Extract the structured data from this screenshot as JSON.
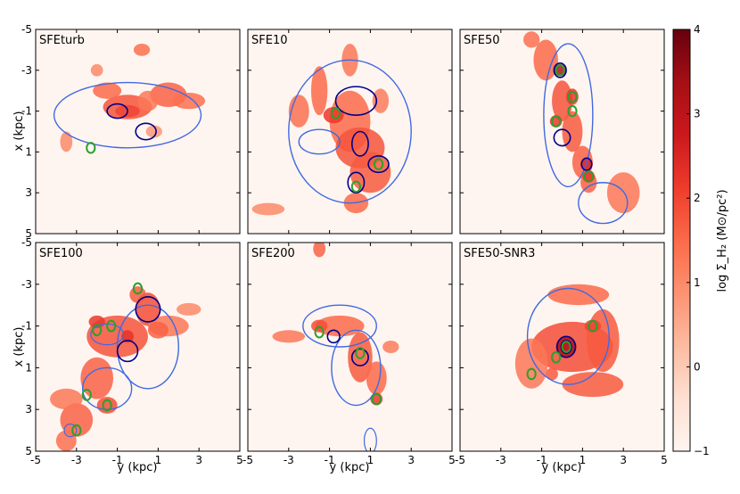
{
  "chart_data": {
    "type": "heatmap",
    "panels": [
      {
        "title": "SFEturb",
        "show_xlabel": false,
        "show_ylabel": true,
        "blobs": [
          [
            -0.5,
            -1.2,
            1.2,
            0.6,
            1.8
          ],
          [
            1.5,
            -1.8,
            0.9,
            0.6,
            1.6
          ],
          [
            2.5,
            -1.5,
            0.8,
            0.4,
            1.4
          ],
          [
            -0.5,
            -1.0,
            0.6,
            0.3,
            2.0
          ],
          [
            -1.5,
            -2.0,
            0.7,
            0.4,
            1.5
          ],
          [
            0.5,
            -1.5,
            0.5,
            0.5,
            1.3
          ],
          [
            -3.5,
            0.5,
            0.3,
            0.5,
            1.0
          ],
          [
            0.2,
            -4.0,
            0.4,
            0.3,
            1.4
          ],
          [
            -2.0,
            -3.0,
            0.3,
            0.3,
            1.0
          ],
          [
            0.8,
            0.0,
            0.4,
            0.3,
            0.8
          ]
        ],
        "contours": [
          [
            -0.5,
            -0.8,
            3.6,
            1.6,
            "#4169e1",
            1.4
          ],
          [
            -1.0,
            -1.0,
            0.5,
            0.35,
            "#00008b",
            1.6
          ],
          [
            0.4,
            0.0,
            0.5,
            0.4,
            "#00008b",
            1.6
          ]
        ],
        "greens": [
          [
            -2.3,
            0.8
          ]
        ]
      },
      {
        "title": "SFE10",
        "show_xlabel": false,
        "show_ylabel": false,
        "blobs": [
          [
            0.0,
            -0.5,
            1.0,
            1.5,
            1.5
          ],
          [
            0.5,
            0.8,
            1.2,
            1.0,
            1.8
          ],
          [
            1.0,
            2.0,
            1.0,
            1.0,
            1.7
          ],
          [
            -1.5,
            -2.0,
            0.4,
            1.2,
            1.5
          ],
          [
            0.0,
            -3.5,
            0.4,
            0.8,
            1.3
          ],
          [
            -2.5,
            -1.0,
            0.5,
            0.8,
            1.4
          ],
          [
            1.5,
            -1.5,
            0.4,
            0.6,
            1.2
          ],
          [
            -4.0,
            3.8,
            0.8,
            0.3,
            1.0
          ],
          [
            0.3,
            3.5,
            0.6,
            0.5,
            1.5
          ],
          [
            -0.8,
            -0.8,
            0.5,
            0.4,
            2.2
          ]
        ],
        "contours": [
          [
            0.0,
            0.0,
            3.0,
            3.5,
            "#4169e1",
            1.4
          ],
          [
            0.3,
            -1.5,
            1.0,
            0.7,
            "#00008b",
            1.6
          ],
          [
            0.5,
            0.6,
            0.4,
            0.6,
            "#00008b",
            1.6
          ],
          [
            1.4,
            1.6,
            0.5,
            0.4,
            "#00008b",
            1.6
          ],
          [
            0.3,
            2.5,
            0.4,
            0.5,
            "#00008b",
            1.6
          ],
          [
            -1.5,
            0.5,
            1.0,
            0.6,
            "#4169e1",
            1.4
          ]
        ],
        "greens": [
          [
            -0.7,
            -0.9
          ],
          [
            1.4,
            1.6
          ],
          [
            0.3,
            2.7
          ]
        ]
      },
      {
        "title": "SFE50",
        "show_xlabel": false,
        "show_ylabel": false,
        "blobs": [
          [
            -0.8,
            -3.5,
            0.6,
            1.0,
            1.5
          ],
          [
            0.0,
            -1.5,
            0.5,
            1.0,
            1.8
          ],
          [
            0.5,
            0.0,
            0.5,
            1.0,
            1.7
          ],
          [
            1.0,
            1.5,
            0.5,
            0.8,
            1.6
          ],
          [
            1.3,
            2.5,
            0.4,
            0.5,
            1.6
          ],
          [
            3.0,
            3.0,
            0.8,
            1.0,
            1.3
          ],
          [
            -1.5,
            -4.5,
            0.4,
            0.4,
            1.4
          ],
          [
            -0.1,
            -3.0,
            0.3,
            0.3,
            3.2
          ],
          [
            0.5,
            -1.7,
            0.3,
            0.4,
            2.2
          ],
          [
            -0.3,
            -0.5,
            0.3,
            0.3,
            2.2
          ],
          [
            1.2,
            1.6,
            0.3,
            0.3,
            2.5
          ],
          [
            1.3,
            2.2,
            0.3,
            0.3,
            2.2
          ]
        ],
        "contours": [
          [
            0.3,
            -0.8,
            1.2,
            3.5,
            "#4169e1",
            1.4
          ],
          [
            2.0,
            3.5,
            1.2,
            1.0,
            "#4169e1",
            1.4
          ],
          [
            -0.1,
            -3.0,
            0.3,
            0.35,
            "#00008b",
            1.6
          ],
          [
            1.2,
            1.6,
            0.25,
            0.3,
            "#00008b",
            1.6
          ],
          [
            0.0,
            0.3,
            0.4,
            0.4,
            "#00008b",
            1.6
          ]
        ],
        "greens": [
          [
            -0.1,
            -3.0
          ],
          [
            0.5,
            -1.7
          ],
          [
            -0.3,
            -0.5
          ],
          [
            0.5,
            -1.0
          ],
          [
            1.3,
            2.2
          ]
        ]
      },
      {
        "title": "SFE100",
        "show_xlabel": true,
        "show_ylabel": true,
        "blobs": [
          [
            -1.0,
            -0.5,
            1.5,
            1.0,
            1.8
          ],
          [
            0.5,
            -1.8,
            0.6,
            0.8,
            1.9
          ],
          [
            -2.0,
            1.5,
            0.8,
            1.0,
            1.6
          ],
          [
            -1.5,
            2.8,
            0.5,
            0.4,
            1.9
          ],
          [
            -3.0,
            3.5,
            0.8,
            0.8,
            1.6
          ],
          [
            -3.5,
            4.5,
            0.5,
            0.5,
            1.4
          ],
          [
            -2.0,
            -1.2,
            0.4,
            0.3,
            2.2
          ],
          [
            -0.5,
            -0.5,
            0.3,
            0.3,
            2.3
          ],
          [
            1.5,
            -1.0,
            1.0,
            0.5,
            1.3
          ],
          [
            2.5,
            -1.8,
            0.6,
            0.3,
            1.0
          ],
          [
            -3.5,
            2.5,
            0.8,
            0.5,
            1.3
          ],
          [
            0.0,
            -2.5,
            0.4,
            0.4,
            1.7
          ],
          [
            1.0,
            -0.8,
            0.5,
            0.4,
            1.6
          ]
        ],
        "contours": [
          [
            0.5,
            0.0,
            1.5,
            2.0,
            "#4169e1",
            1.4
          ],
          [
            -1.5,
            2.0,
            1.2,
            1.0,
            "#4169e1",
            1.4
          ],
          [
            -3.3,
            4.0,
            0.3,
            0.3,
            "#4169e1",
            1.2
          ],
          [
            -1.5,
            -0.6,
            0.8,
            0.5,
            "#4169e1",
            1.2
          ],
          [
            -0.5,
            0.2,
            0.5,
            0.5,
            "#00008b",
            1.6
          ],
          [
            0.5,
            -1.8,
            0.6,
            0.6,
            "#00008b",
            1.6
          ]
        ],
        "greens": [
          [
            0.0,
            -2.8
          ],
          [
            -2.0,
            -0.8
          ],
          [
            -1.3,
            -1.0
          ],
          [
            -2.5,
            2.3
          ],
          [
            -1.5,
            2.8
          ],
          [
            -3.0,
            4.0
          ]
        ]
      },
      {
        "title": "SFE200",
        "show_xlabel": true,
        "show_ylabel": false,
        "blobs": [
          [
            -0.5,
            -1.0,
            1.2,
            0.5,
            1.5
          ],
          [
            0.5,
            0.5,
            0.6,
            1.2,
            1.7
          ],
          [
            1.3,
            1.5,
            0.5,
            0.8,
            1.5
          ],
          [
            -3.0,
            -0.5,
            0.8,
            0.3,
            1.3
          ],
          [
            -1.5,
            -4.7,
            0.3,
            0.4,
            1.6
          ],
          [
            1.3,
            2.5,
            0.3,
            0.3,
            2.2
          ],
          [
            -1.5,
            -1.0,
            0.4,
            0.3,
            1.9
          ],
          [
            2.0,
            0.0,
            0.4,
            0.3,
            1.2
          ]
        ],
        "contours": [
          [
            -0.5,
            -1.0,
            1.8,
            1.0,
            "#4169e1",
            1.4
          ],
          [
            0.3,
            1.0,
            1.2,
            1.8,
            "#4169e1",
            1.4
          ],
          [
            1.0,
            4.5,
            0.3,
            0.6,
            "#4169e1",
            1.2
          ],
          [
            0.5,
            0.5,
            0.4,
            0.4,
            "#00008b",
            1.6
          ],
          [
            -0.8,
            -0.5,
            0.3,
            0.3,
            "#00008b",
            1.6
          ]
        ],
        "greens": [
          [
            1.3,
            2.5
          ],
          [
            0.5,
            0.3
          ],
          [
            -1.5,
            -0.7
          ]
        ]
      },
      {
        "title": "SFE50-SNR3",
        "show_xlabel": true,
        "show_ylabel": false,
        "blobs": [
          [
            0.5,
            0.0,
            2.0,
            1.2,
            1.9
          ],
          [
            0.2,
            0.0,
            0.5,
            0.5,
            3.2
          ],
          [
            2.0,
            -0.3,
            0.8,
            1.5,
            1.7
          ],
          [
            0.8,
            -2.5,
            1.5,
            0.5,
            1.5
          ],
          [
            -1.5,
            0.8,
            0.8,
            1.2,
            1.3
          ],
          [
            1.5,
            1.8,
            1.5,
            0.6,
            1.7
          ],
          [
            -0.5,
            1.3,
            0.3,
            0.3,
            1.7
          ],
          [
            1.5,
            -1.0,
            0.4,
            0.3,
            2.0
          ]
        ],
        "contours": [
          [
            0.3,
            -0.5,
            2.0,
            2.3,
            "#4169e1",
            1.4
          ],
          [
            0.2,
            0.0,
            0.45,
            0.5,
            "#00008b",
            1.6
          ],
          [
            0.2,
            0.0,
            0.25,
            0.3,
            "#00008b",
            1.6
          ]
        ],
        "greens": [
          [
            0.2,
            0.0
          ],
          [
            1.5,
            -1.0
          ],
          [
            -1.5,
            1.3
          ],
          [
            -0.3,
            0.5
          ]
        ]
      }
    ],
    "xlabel": "y (kpc)",
    "ylabel": "x (kpc)",
    "x_ticks": [
      "-5",
      "-3",
      "-1",
      "1",
      "3",
      "5"
    ],
    "y_ticks": [
      "-5",
      "-3",
      "-1",
      "1",
      "3",
      "5"
    ],
    "x_tick_values": [
      -5,
      -3,
      -1,
      1,
      3,
      5
    ],
    "y_tick_values": [
      -5,
      -3,
      -1,
      1,
      3,
      5
    ],
    "xlim": [
      -5,
      5
    ],
    "ylim": [
      5,
      -5
    ],
    "colorbar": {
      "label": "log Σ_H₂ (M⊙/pc²)",
      "min": -1,
      "max": 4,
      "ticks": [
        -1,
        0,
        1,
        2,
        3,
        4
      ],
      "tick_labels": [
        "−1",
        "0",
        "1",
        "2",
        "3",
        "4"
      ],
      "stops": [
        "#fff5f0",
        "#fee0d2",
        "#fcbba1",
        "#fc9272",
        "#fb6a4a",
        "#ef3b2c",
        "#cb181d",
        "#a50f15",
        "#67000d"
      ]
    },
    "colors": {
      "contour_outer": "#4169e1",
      "contour_inner": "#00008b",
      "contour_peak": "#2ca02c"
    }
  }
}
